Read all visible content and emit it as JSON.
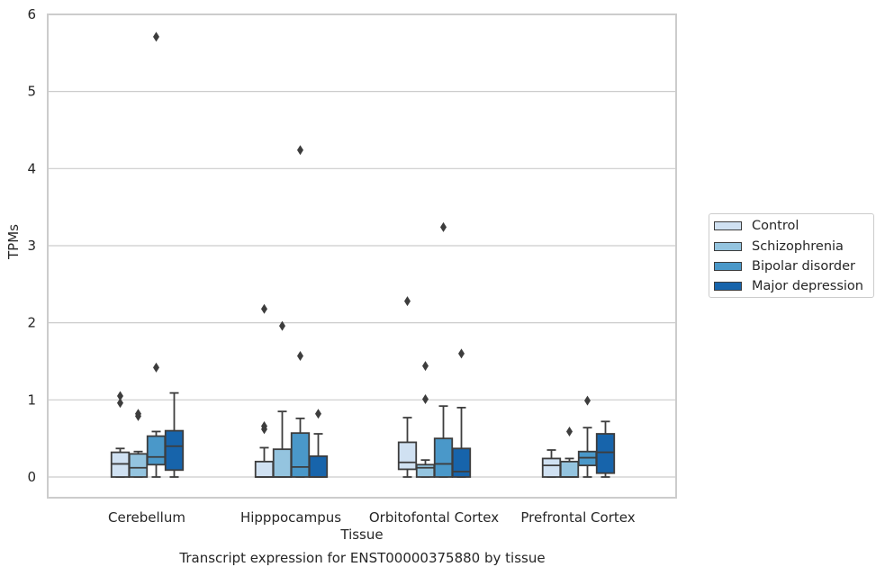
{
  "chart_data": {
    "type": "box",
    "caption": "Transcript expression for ENST00000375880 by tissue",
    "xlabel": "Tissue",
    "ylabel": "TPMs",
    "ylim": [
      -0.27,
      6.0
    ],
    "yticks": [
      0,
      1,
      2,
      3,
      4,
      5,
      6
    ],
    "grid": "horizontal",
    "legend_placement": "right",
    "categories": [
      "Cerebellum",
      "Hipppocampus",
      "Orbitofontal Cortex",
      "Prefrontal Cortex"
    ],
    "series": [
      {
        "name": "Control",
        "color": "#d0e1f2",
        "boxes": [
          {
            "whisker_low": 0.0,
            "q1": 0.0,
            "median": 0.17,
            "q3": 0.32,
            "whisker_high": 0.37,
            "outliers": [
              0.96,
              1.05
            ]
          },
          {
            "whisker_low": 0.0,
            "q1": 0.0,
            "median": 0.0,
            "q3": 0.2,
            "whisker_high": 0.38,
            "outliers": [
              0.62,
              0.66,
              2.18
            ]
          },
          {
            "whisker_low": 0.0,
            "q1": 0.1,
            "median": 0.19,
            "q3": 0.45,
            "whisker_high": 0.77,
            "outliers": [
              2.28
            ]
          },
          {
            "whisker_low": 0.0,
            "q1": 0.0,
            "median": 0.15,
            "q3": 0.24,
            "whisker_high": 0.35,
            "outliers": []
          }
        ]
      },
      {
        "name": "Schizophrenia",
        "color": "#94c4df",
        "boxes": [
          {
            "whisker_low": 0.0,
            "q1": 0.0,
            "median": 0.12,
            "q3": 0.3,
            "whisker_high": 0.33,
            "outliers": [
              0.79,
              0.82
            ]
          },
          {
            "whisker_low": 0.0,
            "q1": 0.0,
            "median": 0.0,
            "q3": 0.36,
            "whisker_high": 0.85,
            "outliers": [
              1.96
            ]
          },
          {
            "whisker_low": 0.0,
            "q1": 0.0,
            "median": 0.12,
            "q3": 0.16,
            "whisker_high": 0.22,
            "outliers": [
              1.01,
              1.44
            ]
          },
          {
            "whisker_low": 0.0,
            "q1": 0.0,
            "median": 0.0,
            "q3": 0.2,
            "whisker_high": 0.24,
            "outliers": [
              0.59
            ]
          }
        ]
      },
      {
        "name": "Bipolar disorder",
        "color": "#4a98c9",
        "boxes": [
          {
            "whisker_low": 0.0,
            "q1": 0.16,
            "median": 0.26,
            "q3": 0.53,
            "whisker_high": 0.59,
            "outliers": [
              1.42,
              5.71
            ]
          },
          {
            "whisker_low": 0.0,
            "q1": 0.0,
            "median": 0.13,
            "q3": 0.57,
            "whisker_high": 0.76,
            "outliers": [
              1.57,
              4.24
            ]
          },
          {
            "whisker_low": 0.0,
            "q1": 0.0,
            "median": 0.17,
            "q3": 0.5,
            "whisker_high": 0.92,
            "outliers": [
              3.24
            ]
          },
          {
            "whisker_low": 0.0,
            "q1": 0.15,
            "median": 0.25,
            "q3": 0.33,
            "whisker_high": 0.64,
            "outliers": [
              0.99
            ]
          }
        ]
      },
      {
        "name": "Major depression",
        "color": "#1764ab",
        "boxes": [
          {
            "whisker_low": 0.0,
            "q1": 0.09,
            "median": 0.4,
            "q3": 0.6,
            "whisker_high": 1.09,
            "outliers": []
          },
          {
            "whisker_low": 0.0,
            "q1": 0.0,
            "median": 0.0,
            "q3": 0.27,
            "whisker_high": 0.56,
            "outliers": [
              0.82
            ]
          },
          {
            "whisker_low": 0.0,
            "q1": 0.0,
            "median": 0.07,
            "q3": 0.37,
            "whisker_high": 0.9,
            "outliers": [
              1.6
            ]
          },
          {
            "whisker_low": 0.0,
            "q1": 0.05,
            "median": 0.32,
            "q3": 0.56,
            "whisker_high": 0.72,
            "outliers": []
          }
        ]
      }
    ]
  }
}
